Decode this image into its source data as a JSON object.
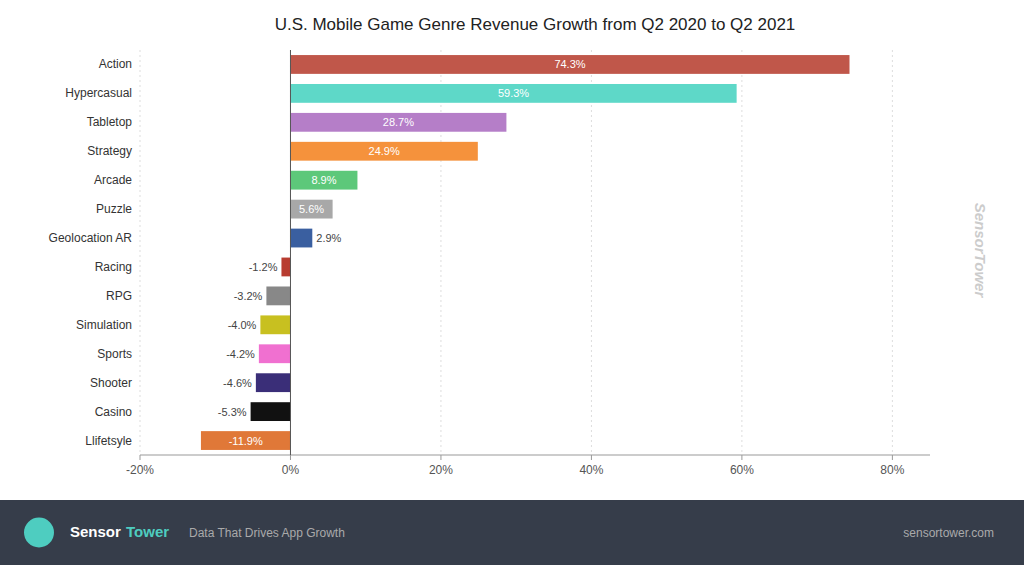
{
  "chart_data": {
    "type": "bar",
    "orientation": "horizontal",
    "title": "U.S. Mobile Game Genre Revenue Growth from Q2 2020 to Q2 2021",
    "categories": [
      "Action",
      "Hypercasual",
      "Tabletop",
      "Strategy",
      "Arcade",
      "Puzzle",
      "Geolocation AR",
      "Racing",
      "RPG",
      "Simulation",
      "Sports",
      "Shooter",
      "Casino",
      "Llifetsyle"
    ],
    "values": [
      74.3,
      59.3,
      28.7,
      24.9,
      8.9,
      5.6,
      2.9,
      -1.2,
      -3.2,
      -4.0,
      -4.2,
      -4.6,
      -5.3,
      -11.9
    ],
    "value_labels": [
      "74.3%",
      "59.3%",
      "28.7%",
      "24.9%",
      "8.9%",
      "5.6%",
      "2.9%",
      "-1.2%",
      "-3.2%",
      "-4.0%",
      "-4.2%",
      "-4.6%",
      "-5.3%",
      "-11.9%"
    ],
    "colors": [
      "#c0574a",
      "#5ed8c8",
      "#b57ec8",
      "#f5923c",
      "#5dc87a",
      "#a8a8a8",
      "#3a5fa0",
      "#b83c30",
      "#888888",
      "#c8c020",
      "#f070d0",
      "#3a2e78",
      "#111111",
      "#e07838"
    ],
    "xlim": [
      -20,
      85
    ],
    "xticks": [
      {
        "value": -20,
        "label": "-20%"
      },
      {
        "value": 0,
        "label": "0%"
      },
      {
        "value": 20,
        "label": "20%"
      },
      {
        "value": 40,
        "label": "40%"
      },
      {
        "value": 60,
        "label": "60%"
      },
      {
        "value": 80,
        "label": "80%"
      }
    ],
    "grid": true,
    "data_labels": true,
    "annotations": [
      "SensorTower",
      "Sensor",
      "Tower",
      "Data That Drives App Growth",
      "sensortower.com"
    ]
  }
}
